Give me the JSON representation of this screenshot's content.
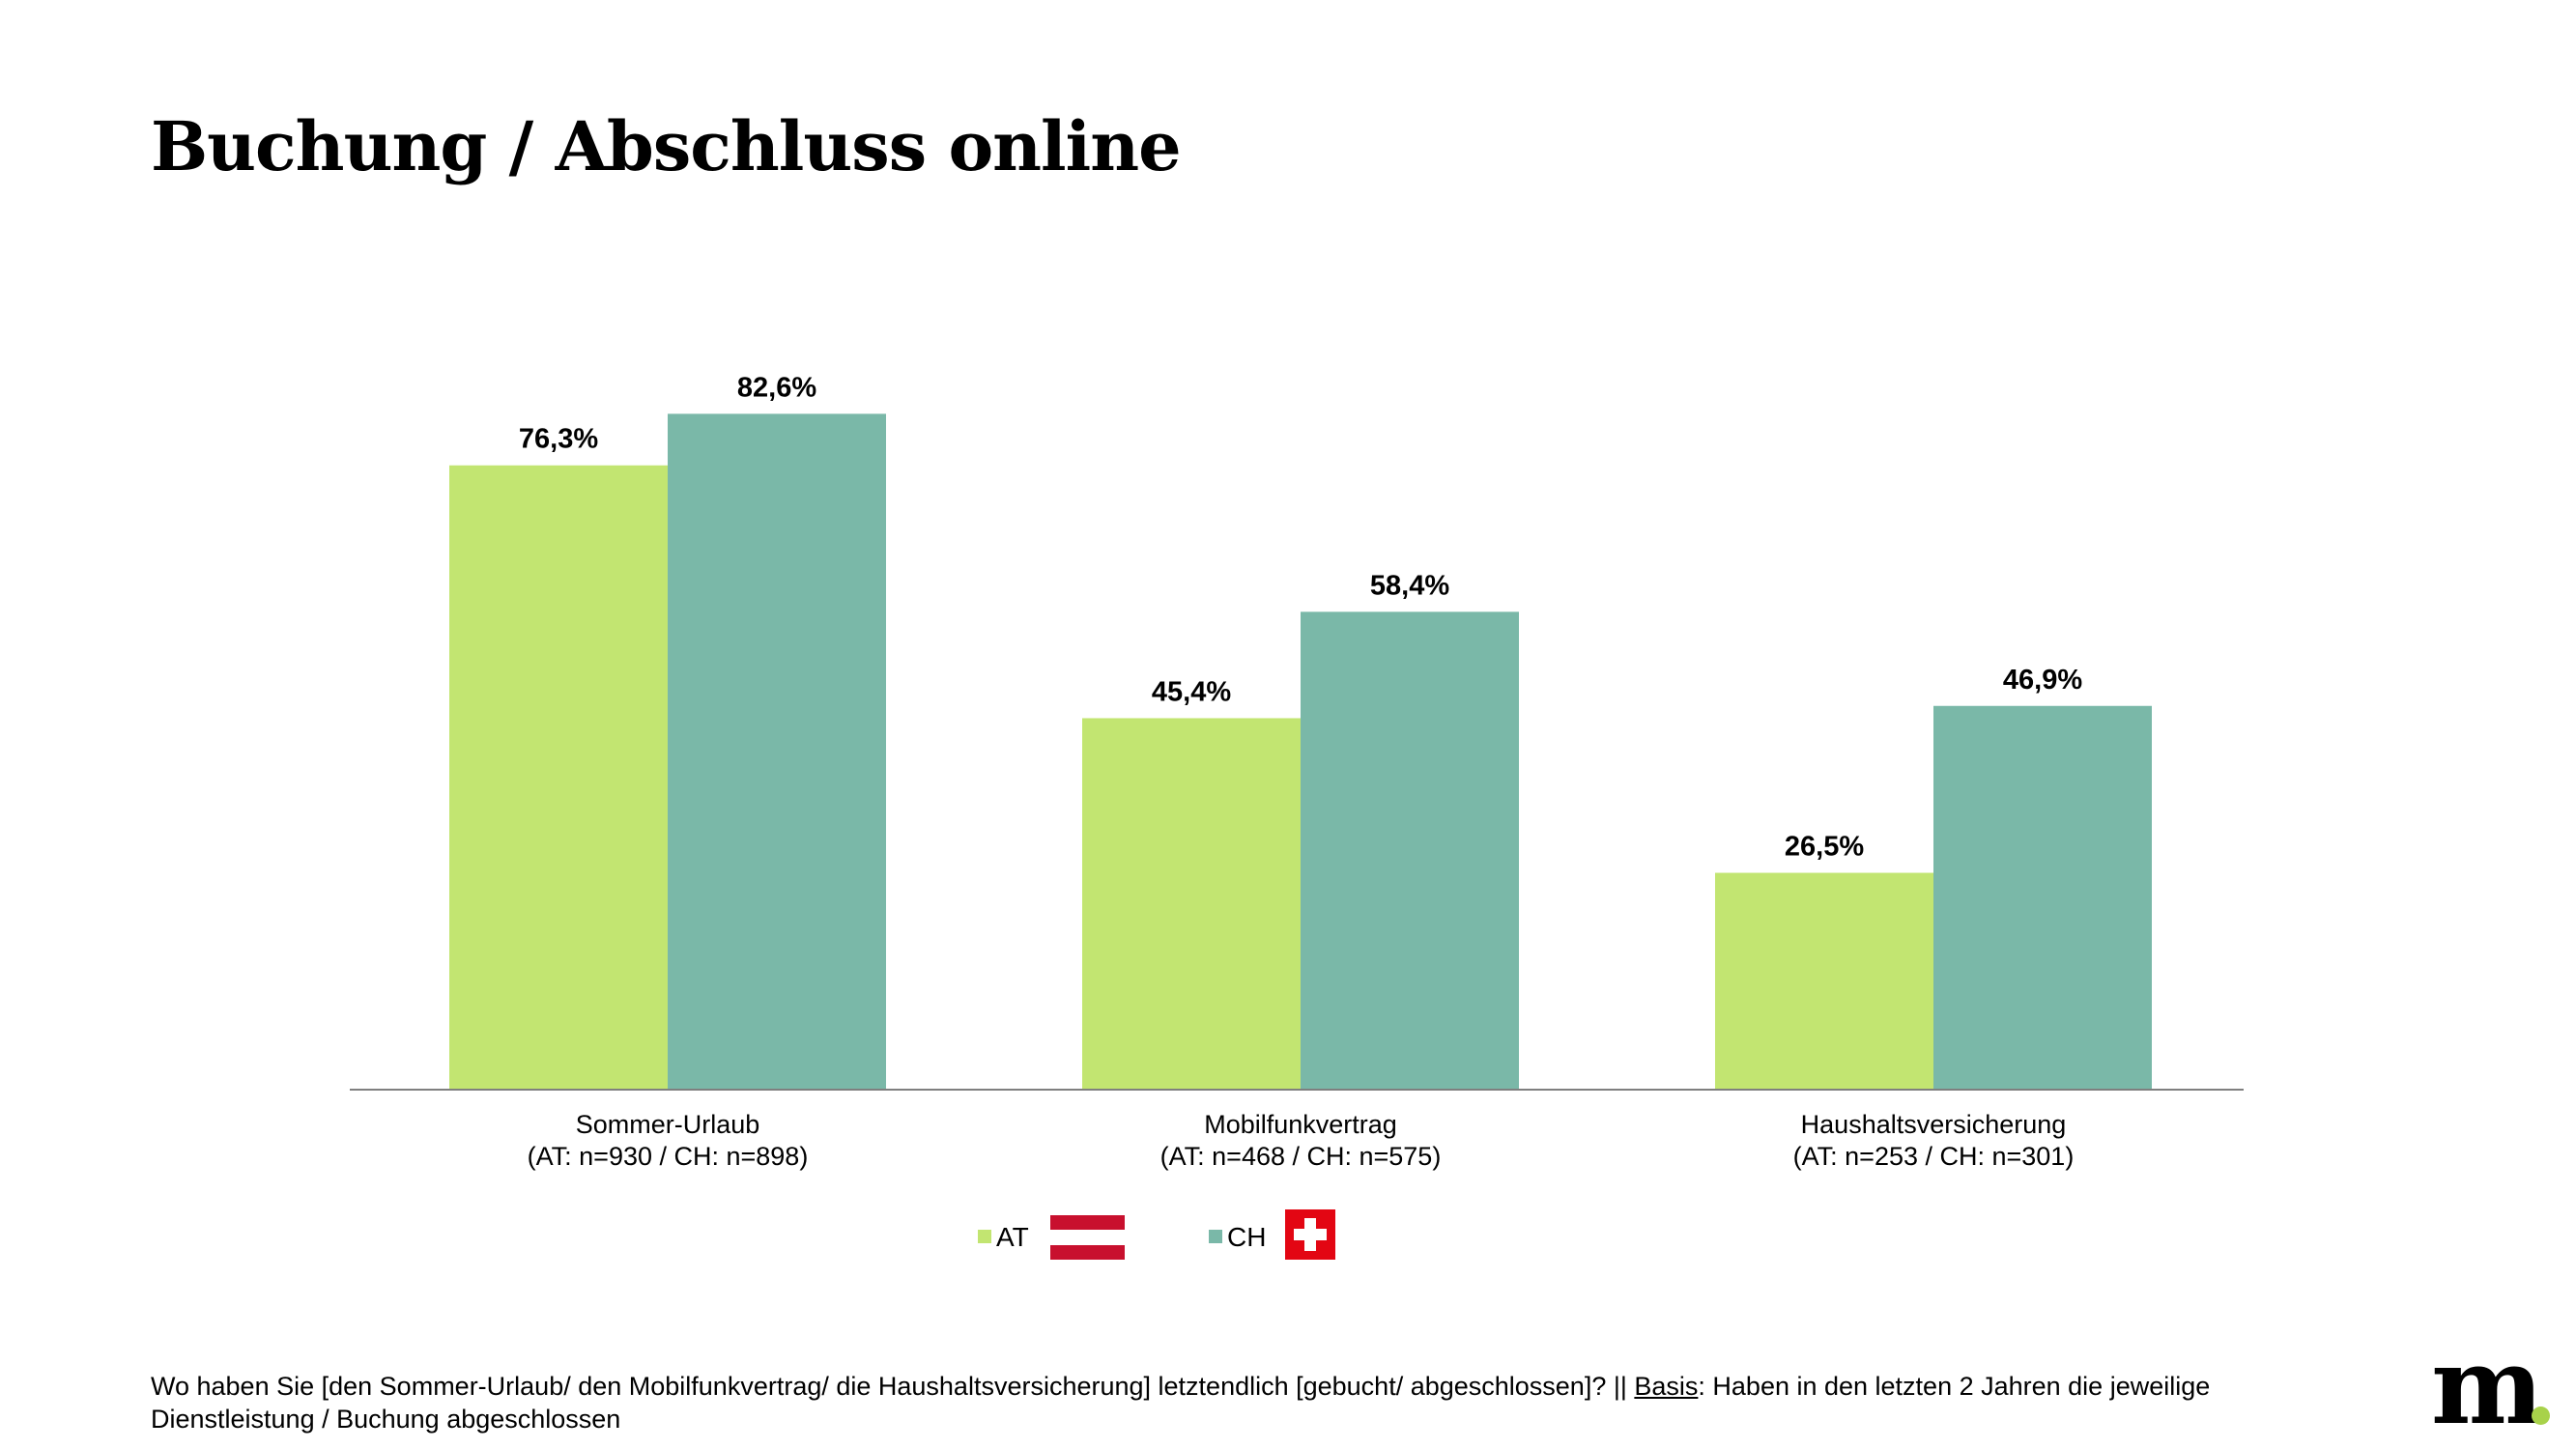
{
  "title": "Buchung / Abschluss online",
  "colors": {
    "AT": "#c2e571",
    "CH": "#7ab8a8",
    "axis": "#7f7f7f",
    "flag_at": "#c8102e",
    "flag_ch": "#e30613"
  },
  "chart_data": {
    "type": "bar",
    "categories": [
      [
        "Sommer-Urlaub",
        "(AT: n=930 / CH: n=898)"
      ],
      [
        "Mobilfunkvertrag",
        "(AT: n=468 / CH: n=575)"
      ],
      [
        "Haushaltsversicherung",
        "(AT: n=253 / CH: n=301)"
      ]
    ],
    "series": [
      {
        "name": "AT",
        "values": [
          76.3,
          45.4,
          26.5
        ],
        "labels": [
          "76,3%",
          "45,4%",
          "26,5%"
        ],
        "flag": "austria-flag"
      },
      {
        "name": "CH",
        "values": [
          82.6,
          58.4,
          46.9
        ],
        "labels": [
          "82,6%",
          "58,4%",
          "46,9%"
        ],
        "flag": "switzerland-flag"
      }
    ],
    "ylim": [
      0,
      100
    ],
    "grid": false,
    "legend": "bottom-center"
  },
  "footnote": {
    "question": "Wo haben Sie [den Sommer-Urlaub/ den Mobilfunkvertrag/ die Haushaltsversicherung]  letztendlich [gebucht/ abgeschlossen]? || ",
    "basis_label": "Basis",
    "basis_text": ": Haben in den letzten 2 Jahren die jeweilige Dienstleistung / Buchung abgeschlossen"
  },
  "logo": {
    "text": "m",
    "icon": "marketagent-logo"
  }
}
